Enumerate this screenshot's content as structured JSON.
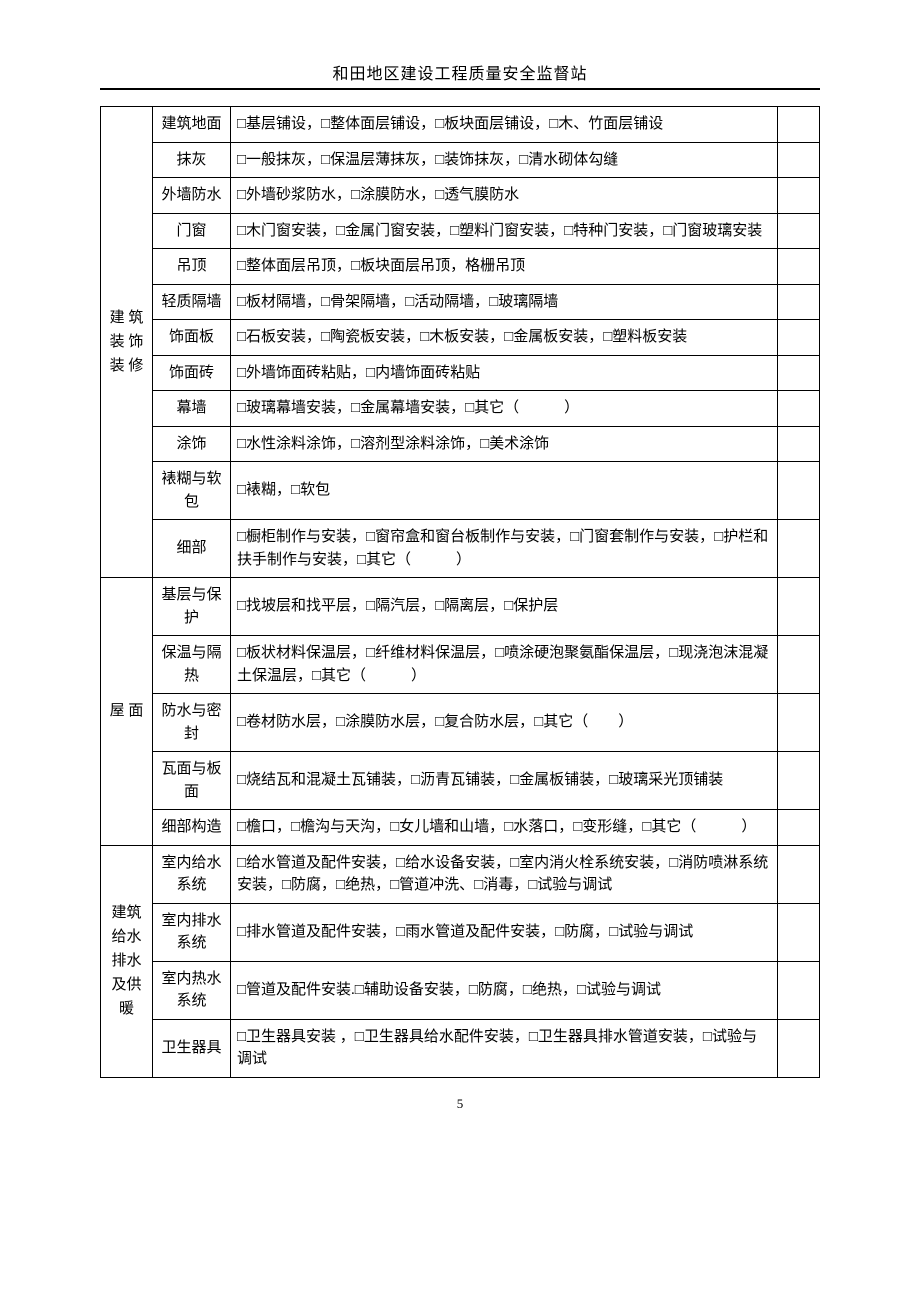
{
  "header": {
    "title": "和田地区建设工程质量安全监督站"
  },
  "footer": {
    "page_number": "5"
  },
  "table": {
    "categories": [
      {
        "name": "建 筑\n装 饰\n装 修",
        "rows": [
          {
            "sub": "建筑地面",
            "options": "□基层铺设，□整体面层铺设，□板块面层铺设，□木、竹面层铺设"
          },
          {
            "sub": "抹灰",
            "options": "□一般抹灰，□保温层薄抹灰，□装饰抹灰，□清水砌体勾缝"
          },
          {
            "sub": "外墙防水",
            "options": "□外墙砂浆防水，□涂膜防水，□透气膜防水"
          },
          {
            "sub": "门窗",
            "options": "□木门窗安装，□金属门窗安装，□塑料门窗安装，□特种门安装，□门窗玻璃安装"
          },
          {
            "sub": "吊顶",
            "options": "□整体面层吊顶，□板块面层吊顶，格栅吊顶"
          },
          {
            "sub": "轻质隔墙",
            "options": "□板材隔墙，□骨架隔墙，□活动隔墙，□玻璃隔墙"
          },
          {
            "sub": "饰面板",
            "options": "□石板安装，□陶瓷板安装，□木板安装，□金属板安装，□塑料板安装"
          },
          {
            "sub": "饰面砖",
            "options": "□外墙饰面砖粘贴，□内墙饰面砖粘贴"
          },
          {
            "sub": "幕墙",
            "options": "□玻璃幕墙安装，□金属幕墙安装，□其它（　　　）"
          },
          {
            "sub": "涂饰",
            "options": "□水性涂料涂饰，□溶剂型涂料涂饰，□美术涂饰"
          },
          {
            "sub": "裱糊与软包",
            "options": "□裱糊，□软包"
          },
          {
            "sub": "细部",
            "options": "□橱柜制作与安装，□窗帘盒和窗台板制作与安装，□门窗套制作与安装，□护栏和扶手制作与安装，□其它（　　　）"
          }
        ]
      },
      {
        "name": "屋 面",
        "rows": [
          {
            "sub": "基层与保护",
            "options": "□找坡层和找平层，□隔汽层，□隔离层，□保护层"
          },
          {
            "sub": "保温与隔热",
            "options": "□板状材料保温层，□纤维材料保温层，□喷涂硬泡聚氨酯保温层，□现浇泡沫混凝土保温层，□其它（　　　）"
          },
          {
            "sub": "防水与密封",
            "options": "□卷材防水层，□涂膜防水层，□复合防水层，□其它（　　）"
          },
          {
            "sub": "瓦面与板面",
            "options": "□烧结瓦和混凝土瓦铺装，□沥青瓦铺装，□金属板铺装，□玻璃采光顶铺装"
          },
          {
            "sub": "细部构造",
            "options": "□檐口，□檐沟与天沟，□女儿墙和山墙，□水落口，□变形缝，□其它（　　　）"
          }
        ]
      },
      {
        "name": "建筑\n给水\n排水\n及供\n暖",
        "rows": [
          {
            "sub": "室内给水系统",
            "options": "□给水管道及配件安装，□给水设备安装，□室内消火栓系统安装，□消防喷淋系统安装，□防腐，□绝热，□管道冲洗、□消毒，□试验与调试"
          },
          {
            "sub": "室内排水系统",
            "options": "□排水管道及配件安装，□雨水管道及配件安装，□防腐，□试验与调试"
          },
          {
            "sub": "室内热水系统",
            "options": "□管道及配件安装.□辅助设备安装，□防腐，□绝热，□试验与调试"
          },
          {
            "sub": "卫生器具",
            "options": "□卫生器具安装 ，□卫生器具给水配件安装，□卫生器具排水管道安装，□试验与调试"
          }
        ]
      }
    ]
  }
}
